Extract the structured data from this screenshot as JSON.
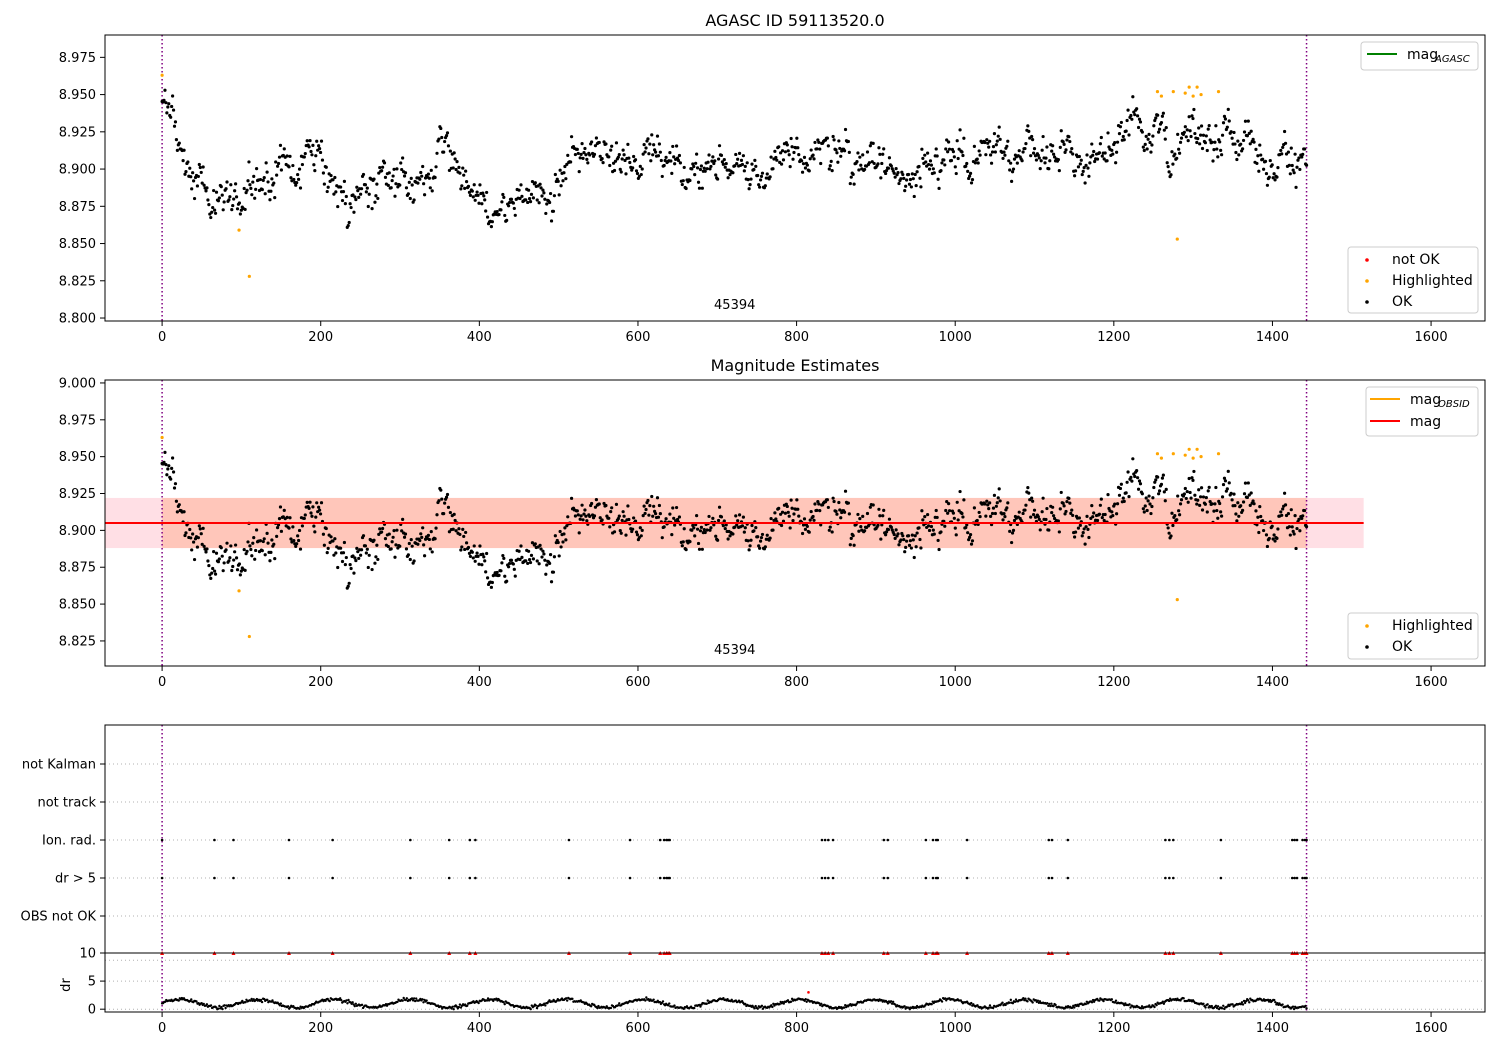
{
  "chart_data": [
    {
      "type": "scatter",
      "title": "AGASC ID 59113520.0",
      "xlim": [
        -72,
        1668
      ],
      "ylim": [
        8.798,
        8.99
      ],
      "x_ticks": [
        0,
        200,
        400,
        600,
        800,
        1000,
        1200,
        1400,
        1600
      ],
      "y_ticks": [
        8.8,
        8.825,
        8.85,
        8.875,
        8.9,
        8.925,
        8.95,
        8.975
      ],
      "vlines_dotted": [
        0,
        1443
      ],
      "obsid_label": {
        "text": "45394",
        "x": 722,
        "y": 8.806
      },
      "line_legend": [
        {
          "label": "mag",
          "subscript": "AGASC",
          "color": "#008000"
        }
      ],
      "scatter_legend": [
        {
          "label": "not OK",
          "color": "#ff0000"
        },
        {
          "label": "Highlighted",
          "color": "#ffa500"
        },
        {
          "label": "OK",
          "color": "#000000"
        }
      ],
      "series_ok": {
        "x_range": [
          0,
          1443
        ],
        "count": 1200,
        "trend": [
          [
            0,
            8.94
          ],
          [
            25,
            8.915
          ],
          [
            45,
            8.905
          ],
          [
            60,
            8.885
          ],
          [
            95,
            8.878
          ],
          [
            120,
            8.89
          ],
          [
            160,
            8.903
          ],
          [
            200,
            8.905
          ],
          [
            240,
            8.88
          ],
          [
            300,
            8.892
          ],
          [
            330,
            8.886
          ],
          [
            350,
            8.915
          ],
          [
            400,
            8.882
          ],
          [
            450,
            8.885
          ],
          [
            490,
            8.885
          ],
          [
            520,
            8.905
          ],
          [
            560,
            8.915
          ],
          [
            600,
            8.912
          ],
          [
            650,
            8.902
          ],
          [
            700,
            8.905
          ],
          [
            740,
            8.9
          ],
          [
            800,
            8.91
          ],
          [
            850,
            8.905
          ],
          [
            900,
            8.9
          ],
          [
            960,
            8.895
          ],
          [
            1000,
            8.905
          ],
          [
            1050,
            8.915
          ],
          [
            1100,
            8.905
          ],
          [
            1160,
            8.905
          ],
          [
            1200,
            8.915
          ],
          [
            1230,
            8.925
          ],
          [
            1250,
            8.925
          ],
          [
            1262,
            8.935
          ],
          [
            1270,
            8.902
          ],
          [
            1290,
            8.93
          ],
          [
            1330,
            8.932
          ],
          [
            1360,
            8.91
          ],
          [
            1400,
            8.915
          ],
          [
            1443,
            8.905
          ]
        ]
      },
      "series_highlighted": {
        "x": [
          0,
          97,
          110,
          1255,
          1260,
          1275,
          1280,
          1290,
          1295,
          1300,
          1305,
          1310,
          1332
        ],
        "y": [
          8.963,
          8.859,
          8.828,
          8.952,
          8.949,
          8.952,
          8.853,
          8.951,
          8.955,
          8.949,
          8.955,
          8.95,
          8.952
        ]
      }
    },
    {
      "type": "scatter",
      "title": "Magnitude Estimates",
      "xlim": [
        -72,
        1668
      ],
      "ylim": [
        8.808,
        9.002
      ],
      "x_ticks": [
        0,
        200,
        400,
        600,
        800,
        1000,
        1200,
        1400,
        1600
      ],
      "y_ticks": [
        8.825,
        8.85,
        8.875,
        8.9,
        8.925,
        8.95,
        8.975,
        9.0
      ],
      "vlines_dotted": [
        0,
        1443
      ],
      "obsid_label": {
        "text": "45394",
        "x": 722,
        "y": 8.816
      },
      "mag_line": {
        "y": 8.905,
        "x": [
          -72,
          1515
        ],
        "color": "#ff0000"
      },
      "band_outer": {
        "y": [
          8.888,
          8.922
        ],
        "x": [
          -72,
          1515
        ],
        "color": "#ffc0cb"
      },
      "band_inner": {
        "y": [
          8.888,
          8.922
        ],
        "x": [
          0,
          1443
        ],
        "color": "#ffa07a"
      },
      "line_legend": [
        {
          "label": "mag",
          "subscript": "OBSID",
          "color": "#ffa500"
        },
        {
          "label": "mag",
          "subscript": "",
          "color": "#ff0000"
        }
      ],
      "scatter_legend": [
        {
          "label": "Highlighted",
          "color": "#ffa500"
        },
        {
          "label": "OK",
          "color": "#000000"
        }
      ]
    },
    {
      "type": "scatter",
      "xlim": [
        -72,
        1668
      ],
      "categories": [
        "not Kalman",
        "not track",
        "Ion. rad.",
        "dr > 5",
        "OBS not OK"
      ],
      "vlines_dotted": [
        0,
        1443
      ],
      "flag_x": [
        0,
        66,
        90,
        160,
        215,
        313,
        362,
        388,
        395,
        513,
        590,
        628,
        633,
        636,
        638,
        640,
        832,
        836,
        840,
        846,
        910,
        915,
        963,
        972,
        976,
        978,
        1015,
        1118,
        1122,
        1142,
        1265,
        1270,
        1275,
        1335,
        1425,
        1428,
        1431,
        1438,
        1441,
        1443
      ],
      "flag_rows": [
        "Ion. rad.",
        "dr > 5"
      ]
    },
    {
      "type": "scatter",
      "ylabel": "dr",
      "xlim": [
        -72,
        1668
      ],
      "ylim": [
        -0.5,
        10
      ],
      "x_ticks": [
        0,
        200,
        400,
        600,
        800,
        1000,
        1200,
        1400,
        1600
      ],
      "y_ticks": [
        0,
        5,
        10
      ],
      "vlines_dotted": [
        0,
        1443
      ],
      "dr_ok": {
        "x_range": [
          0,
          1443
        ],
        "mean": 1.0,
        "amplitude": 0.8
      },
      "dr_outlier": {
        "x": 815,
        "y": 3.0
      },
      "dr_notok_markers_y": 10
    }
  ]
}
